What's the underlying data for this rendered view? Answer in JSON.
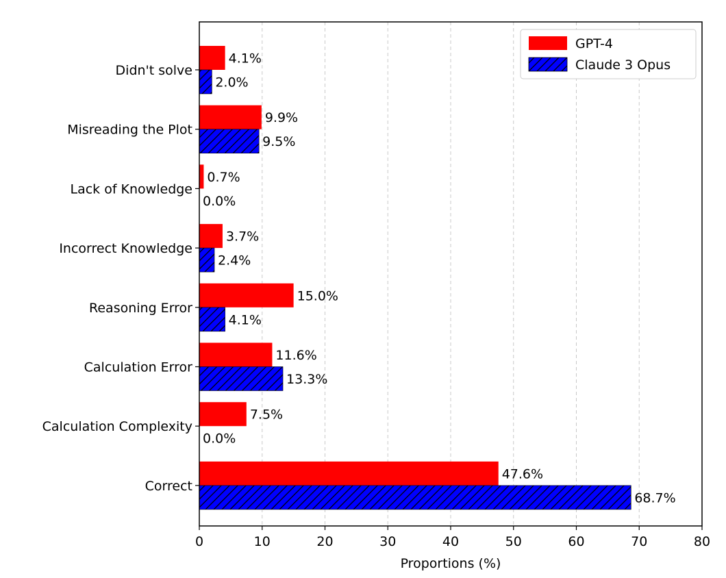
{
  "chart_data": {
    "type": "bar",
    "orientation": "horizontal",
    "categories": [
      "Didn't solve",
      "Misreading the Plot",
      "Lack of Knowledge",
      "Incorrect Knowledge",
      "Reasoning Error",
      "Calculation Error",
      "Calculation Complexity",
      "Correct"
    ],
    "series": [
      {
        "name": "GPT-4",
        "values": [
          4.1,
          9.9,
          0.7,
          3.7,
          15.0,
          11.6,
          7.5,
          47.6
        ],
        "labels": [
          "4.1%",
          "9.9%",
          "0.7%",
          "3.7%",
          "15.0%",
          "11.6%",
          "7.5%",
          "47.6%"
        ],
        "color": "#ff0000",
        "hatch": false
      },
      {
        "name": "Claude 3 Opus",
        "values": [
          2.0,
          9.5,
          0.0,
          2.4,
          4.1,
          13.3,
          0.0,
          68.7
        ],
        "labels": [
          "2.0%",
          "9.5%",
          "0.0%",
          "2.4%",
          "4.1%",
          "13.3%",
          "0.0%",
          "68.7%"
        ],
        "color": "#0000ff",
        "hatch": true
      }
    ],
    "xlabel": "Proportions (%)",
    "ylabel": "",
    "xlim": [
      0,
      80
    ],
    "xticks": [
      "0",
      "10",
      "20",
      "30",
      "40",
      "50",
      "60",
      "70",
      "80"
    ],
    "grid": "vertical dashed",
    "legend_position": "top-right"
  }
}
